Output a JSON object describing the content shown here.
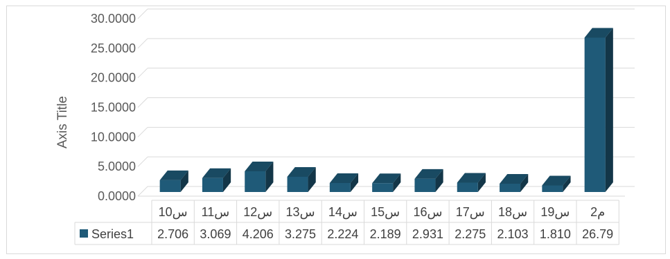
{
  "chart_data": {
    "type": "bar",
    "style": "3d-column",
    "title": "",
    "xlabel": "",
    "ylabel": "Axis Title",
    "ylim": [
      0,
      30
    ],
    "ytick_step": 5,
    "ytick_labels": [
      "0.0000",
      "5.0000",
      "10.0000",
      "15.0000",
      "20.0000",
      "25.0000",
      "30.0000"
    ],
    "grid": true,
    "categories": [
      "س10",
      "س11",
      "س12",
      "س13",
      "س14",
      "س15",
      "س16",
      "س17",
      "س18",
      "س19",
      "م2"
    ],
    "series": [
      {
        "name": "Series1",
        "color": "#1f5a78",
        "values": [
          2.706,
          3.069,
          4.206,
          3.275,
          2.224,
          2.189,
          2.931,
          2.275,
          2.103,
          1.81,
          26.79
        ],
        "value_labels": [
          "2.706",
          "3.069",
          "4.206",
          "3.275",
          "2.224",
          "2.189",
          "2.931",
          "2.275",
          "2.103",
          "1.810",
          "26.79"
        ]
      }
    ],
    "data_table": true,
    "legend": "data-table"
  }
}
